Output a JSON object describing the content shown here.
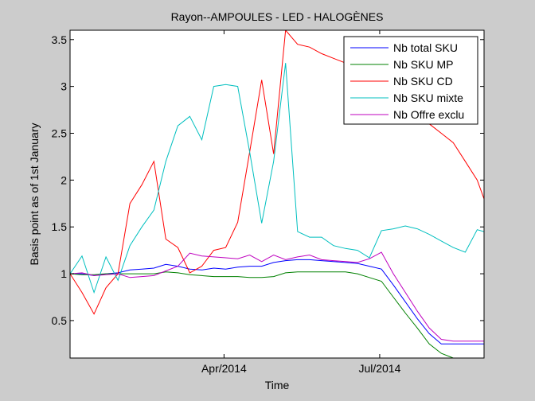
{
  "chart_data": {
    "type": "line",
    "title": "Rayon--AMPOULES - LED - HALOGÈNES",
    "xlabel": "Time",
    "ylabel": "Basis point as of 1st January",
    "x_type": "date",
    "xlim": [
      "2014-01-01",
      "2014-08-31"
    ],
    "ylim": [
      0.1,
      3.6
    ],
    "yticks": [
      0.5,
      1,
      1.5,
      2,
      2.5,
      3,
      3.5
    ],
    "ytick_labels": [
      "0.5",
      "1",
      "1.5",
      "2",
      "2.5",
      "3",
      "3.5"
    ],
    "xticks": [
      "2014-04-01",
      "2014-07-01"
    ],
    "xtick_labels": [
      "Apr/2014",
      "Jul/2014"
    ],
    "grid": false,
    "legend_position": "top-right",
    "x": [
      "2014-01-01",
      "2014-01-08",
      "2014-01-15",
      "2014-01-22",
      "2014-01-29",
      "2014-02-05",
      "2014-02-12",
      "2014-02-19",
      "2014-02-26",
      "2014-03-05",
      "2014-03-12",
      "2014-03-19",
      "2014-03-26",
      "2014-04-02",
      "2014-04-09",
      "2014-04-16",
      "2014-04-23",
      "2014-04-30",
      "2014-05-07",
      "2014-05-14",
      "2014-05-21",
      "2014-05-28",
      "2014-06-04",
      "2014-06-11",
      "2014-06-18",
      "2014-06-25",
      "2014-07-02",
      "2014-07-09",
      "2014-07-16",
      "2014-07-23",
      "2014-07-30",
      "2014-08-06",
      "2014-08-13",
      "2014-08-20",
      "2014-08-27",
      "2014-08-31"
    ],
    "series": [
      {
        "name": "Nb total SKU",
        "color": "#0000ff",
        "values": [
          1.0,
          1.0,
          0.98,
          1.0,
          1.01,
          1.04,
          1.05,
          1.06,
          1.1,
          1.08,
          1.05,
          1.04,
          1.06,
          1.05,
          1.07,
          1.08,
          1.08,
          1.12,
          1.14,
          1.15,
          1.15,
          1.14,
          1.13,
          1.12,
          1.11,
          1.08,
          1.05,
          0.88,
          0.7,
          0.52,
          0.36,
          0.25,
          0.25,
          0.25,
          0.25,
          0.25
        ]
      },
      {
        "name": "Nb SKU MP",
        "color": "#008000",
        "values": [
          1.0,
          0.99,
          0.99,
          1.0,
          1.0,
          1.0,
          1.0,
          1.0,
          1.02,
          1.01,
          0.99,
          0.98,
          0.97,
          0.97,
          0.97,
          0.96,
          0.96,
          0.97,
          1.01,
          1.02,
          1.02,
          1.02,
          1.02,
          1.02,
          1.0,
          0.96,
          0.92,
          0.75,
          0.58,
          0.42,
          0.25,
          0.15,
          0.1,
          0.1,
          0.1,
          0.1
        ]
      },
      {
        "name": "Nb SKU CD",
        "color": "#ff0000",
        "values": [
          1.0,
          0.8,
          0.57,
          0.85,
          1.0,
          1.75,
          1.95,
          2.2,
          1.37,
          1.28,
          1.01,
          1.08,
          1.25,
          1.28,
          1.55,
          2.3,
          3.07,
          2.28,
          3.6,
          3.45,
          3.42,
          3.35,
          3.3,
          3.25,
          3.2,
          3.1,
          3.0,
          2.95,
          2.88,
          2.75,
          2.6,
          2.5,
          2.4,
          2.2,
          2.0,
          1.8
        ]
      },
      {
        "name": "Nb SKU mixte",
        "color": "#00bfbf",
        "values": [
          1.0,
          1.19,
          0.8,
          1.18,
          0.93,
          1.3,
          1.5,
          1.68,
          2.2,
          2.58,
          2.68,
          2.43,
          3.0,
          3.02,
          3.0,
          2.3,
          1.54,
          2.2,
          3.25,
          1.45,
          1.39,
          1.39,
          1.3,
          1.27,
          1.25,
          1.17,
          1.46,
          1.48,
          1.51,
          1.48,
          1.42,
          1.35,
          1.28,
          1.23,
          1.47,
          1.45
        ]
      },
      {
        "name": "Nb Offre exclu",
        "color": "#bf00bf",
        "values": [
          1.0,
          1.01,
          0.98,
          0.99,
          1.0,
          0.96,
          0.97,
          0.98,
          1.03,
          1.08,
          1.22,
          1.19,
          1.18,
          1.17,
          1.16,
          1.2,
          1.13,
          1.2,
          1.15,
          1.18,
          1.2,
          1.15,
          1.14,
          1.13,
          1.12,
          1.16,
          1.23,
          1.0,
          0.8,
          0.6,
          0.42,
          0.3,
          0.28,
          0.28,
          0.28,
          0.28
        ]
      }
    ]
  }
}
